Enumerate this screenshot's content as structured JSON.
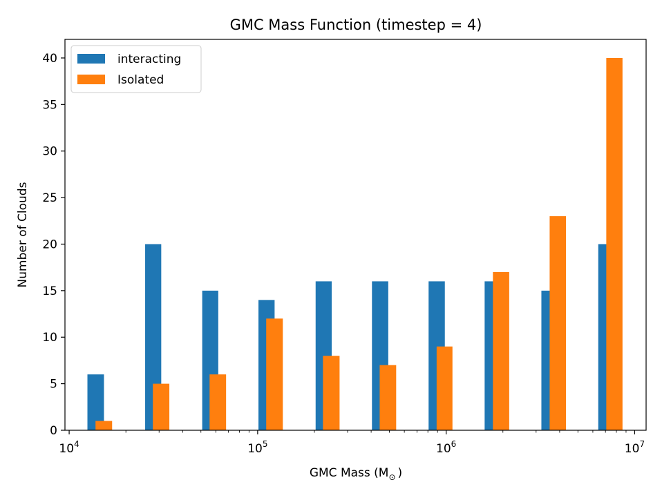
{
  "chart_data": {
    "type": "bar",
    "title": "GMC Mass Function (timestep = 4)",
    "xlabel": "GMC Mass (M",
    "xlabel_sub": "⊙",
    "xlabel_close": ")",
    "ylabel": "Number of Clouds",
    "xscale": "log",
    "xlim": [
      9500,
      11500000
    ],
    "ylim": [
      0,
      42
    ],
    "x_ticks": [
      {
        "base": "10",
        "exp": "4",
        "value": 10000
      },
      {
        "base": "10",
        "exp": "5",
        "value": 100000
      },
      {
        "base": "10",
        "exp": "6",
        "value": 1000000
      },
      {
        "base": "10",
        "exp": "7",
        "value": 10000000
      }
    ],
    "y_ticks": [
      0,
      5,
      10,
      15,
      20,
      25,
      30,
      35,
      40
    ],
    "legend_position": "upper-left",
    "series": [
      {
        "name": "interacting",
        "color": "#1f77b4",
        "bars": [
          {
            "x0": 12500,
            "x1": 15300,
            "value": 6
          },
          {
            "x0": 25300,
            "x1": 30800,
            "value": 20
          },
          {
            "x0": 50800,
            "x1": 61800,
            "value": 15
          },
          {
            "x0": 101000,
            "x1": 123000,
            "value": 14
          },
          {
            "x0": 203000,
            "x1": 247000,
            "value": 16
          },
          {
            "x0": 404000,
            "x1": 493000,
            "value": 16
          },
          {
            "x0": 807000,
            "x1": 984000,
            "value": 16
          },
          {
            "x0": 1600000,
            "x1": 1960000,
            "value": 16
          },
          {
            "x0": 3200000,
            "x1": 3900000,
            "value": 15
          },
          {
            "x0": 6410000,
            "x1": 7800000,
            "value": 20
          }
        ]
      },
      {
        "name": "Isolated",
        "color": "#ff7f0e",
        "bars": [
          {
            "x0": 13800,
            "x1": 16900,
            "value": 1
          },
          {
            "x0": 27800,
            "x1": 34000,
            "value": 5
          },
          {
            "x0": 55600,
            "x1": 68000,
            "value": 6
          },
          {
            "x0": 111000,
            "x1": 136000,
            "value": 12
          },
          {
            "x0": 222000,
            "x1": 272000,
            "value": 8
          },
          {
            "x0": 444000,
            "x1": 543000,
            "value": 7
          },
          {
            "x0": 890000,
            "x1": 1080000,
            "value": 9
          },
          {
            "x0": 1770000,
            "x1": 2160000,
            "value": 17
          },
          {
            "x0": 3540000,
            "x1": 4320000,
            "value": 23
          },
          {
            "x0": 7070000,
            "x1": 8620000,
            "value": 40
          }
        ]
      }
    ]
  }
}
